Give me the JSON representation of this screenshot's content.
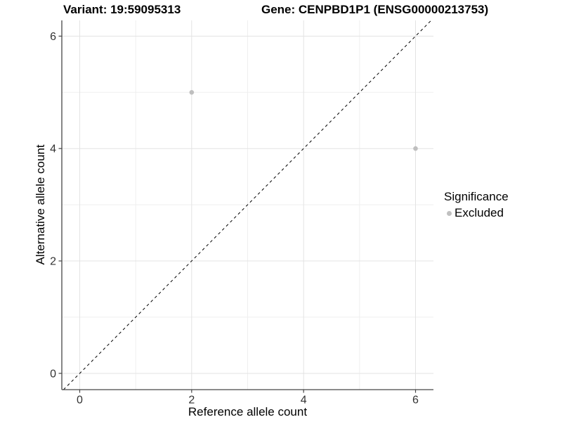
{
  "chart_data": {
    "type": "scatter",
    "titles": [
      "Variant: 19:59095313",
      "Gene: CENPBD1P1 (ENSG00000213753)"
    ],
    "xlabel": "Reference allele count",
    "ylabel": "Alternative allele count",
    "xlim": [
      -0.32,
      6.32
    ],
    "ylim": [
      -0.29,
      6.28
    ],
    "x_ticks": [
      0,
      2,
      4,
      6
    ],
    "y_ticks": [
      0,
      2,
      4,
      6
    ],
    "x_minor_ticks": [
      1,
      3,
      5
    ],
    "y_minor_ticks": [
      1,
      3,
      5
    ],
    "grid": "major+minor",
    "series": [
      {
        "name": "Excluded",
        "color": "#bfbfbf",
        "points": [
          {
            "x": 2,
            "y": 5
          },
          {
            "x": 6,
            "y": 4
          }
        ]
      }
    ],
    "identity_line": {
      "equation": "y = x",
      "style": "dashed",
      "color": "#000000"
    },
    "legend": {
      "title": "Significance",
      "position": "right",
      "items": [
        {
          "label": "Excluded",
          "color": "#c0c0c0"
        }
      ]
    }
  },
  "style": {
    "background": "#ffffff",
    "grid_major_color": "#e3e3e3",
    "grid_minor_color": "#efefef",
    "axis_color": "#464646",
    "tick_label_color": "#333333",
    "point_radius": 3.3
  }
}
